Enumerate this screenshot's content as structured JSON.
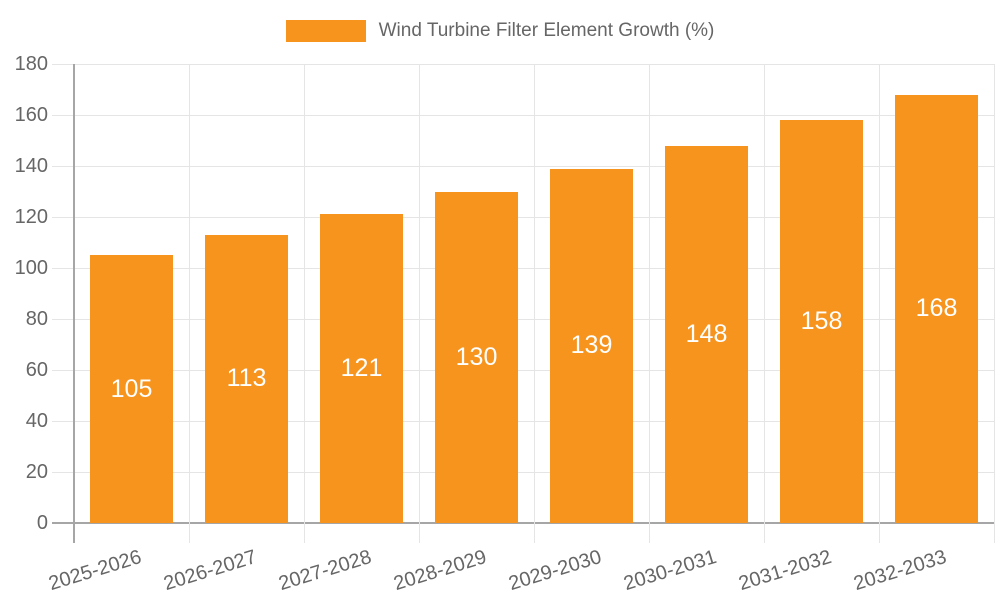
{
  "chart_data": {
    "type": "bar",
    "title": "",
    "legend_label": "Wind Turbine Filter Element Growth (%)",
    "legend_position": "top-center",
    "categories": [
      "2025-2026",
      "2026-2027",
      "2027-2028",
      "2028-2029",
      "2029-2030",
      "2030-2031",
      "2031-2032",
      "2032-2033"
    ],
    "values": [
      105,
      113,
      121,
      130,
      139,
      148,
      158,
      168
    ],
    "xlabel": "",
    "ylabel": "",
    "ylim": [
      0,
      180
    ],
    "ytick_step": 20,
    "grid": true,
    "bar_value_labels_inside": true,
    "colors": {
      "bar": "#F7941E",
      "bar_label": "#FFFFFF",
      "axis_text": "#666666",
      "gridline": "#E5E5E5",
      "axis_line": "#A6A6A6",
      "background": "#FFFFFF"
    }
  }
}
